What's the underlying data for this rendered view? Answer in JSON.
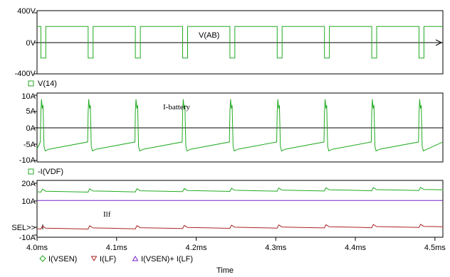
{
  "chart_data": [
    {
      "type": "line",
      "panel": "top",
      "x_unit": "ms",
      "x_range": [
        4.0,
        4.51
      ],
      "ylim": [
        -400,
        400
      ],
      "yticks": [
        "400V",
        "0V",
        "-400V"
      ],
      "annotation": "V(AB)",
      "legend": [
        {
          "name": "V(14)",
          "color": "#22aa22",
          "marker": "square"
        }
      ],
      "series": [
        {
          "name": "V(14)",
          "color": "#22aa22",
          "style": "square-wave",
          "high": 200,
          "low": -200,
          "period_ms": 0.0594,
          "first_edge_ms": 4.0048,
          "low_width_ms": 0.0062,
          "x_end_ms": 4.51
        }
      ]
    },
    {
      "type": "line",
      "panel": "middle",
      "x_unit": "ms",
      "x_range": [
        4.0,
        4.51
      ],
      "ylim": [
        -10,
        10
      ],
      "yticks": [
        "10A",
        "5A",
        "0A",
        "-5A",
        "-10A"
      ],
      "annotation": "I-battery",
      "legend": [
        {
          "name": "-I(VDF)",
          "color": "#22aa22",
          "marker": "square"
        }
      ],
      "series": [
        {
          "name": "-I(VDF)",
          "color": "#22aa22",
          "style": "sawtooth",
          "period_ms": 0.0594,
          "first_spike_ms": 4.0048,
          "spike_peak": 8.2,
          "trough": -6.8,
          "ramp_to": -4.2,
          "x_end_ms": 4.51
        }
      ]
    },
    {
      "type": "line",
      "panel": "bottom",
      "x_unit": "ms",
      "x_range": [
        4.0,
        4.51
      ],
      "ylim": [
        -10,
        20
      ],
      "yticks": [
        "20A",
        "10A",
        "SEL>>",
        "-10A"
      ],
      "xticks": [
        "4.0ms",
        "4.1ms",
        "4.2ms",
        "4.3ms",
        "4.4ms",
        "4.5ms"
      ],
      "xlabel": "Time",
      "annotation": "Ilf",
      "legend": [
        {
          "name": "I(VSEN)",
          "color": "#22aa22",
          "marker": "diamond"
        },
        {
          "name": "I(LF)",
          "color": "#aa2222",
          "marker": "triangle-down"
        },
        {
          "name": "I(VSEN)+ I(LF)",
          "color": "#7a22cc",
          "marker": "triangle-up"
        }
      ],
      "series": [
        {
          "name": "I(VSEN)",
          "color": "#22aa22",
          "style": "ripple",
          "base_start": 14.0,
          "base_end": 15.0,
          "ripple": 1.4,
          "period_ms": 0.0594,
          "first_spike_ms": 4.0048,
          "x_end_ms": 4.51
        },
        {
          "name": "I(LF)",
          "color": "#aa2222",
          "style": "ripple",
          "base_start": -5.5,
          "base_end": -4.5,
          "ripple": 1.4,
          "period_ms": 0.0594,
          "first_spike_ms": 4.0048,
          "x_end_ms": 4.51
        },
        {
          "name": "I(VSEN)+ I(LF)",
          "color": "#7a22cc",
          "style": "constant",
          "value": 9.4,
          "x_end_ms": 4.51
        }
      ]
    }
  ]
}
